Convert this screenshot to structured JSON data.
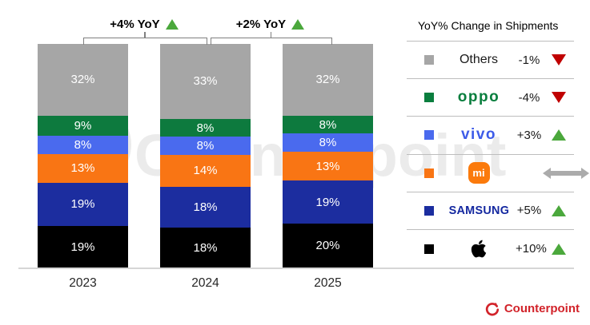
{
  "chart_data": {
    "type": "bar",
    "subtype": "100% stacked column",
    "categories": [
      "2023",
      "2024",
      "2025"
    ],
    "stack_order": "top-to-bottom",
    "series": [
      {
        "name": "Others",
        "color": "#A6A6A6",
        "values": [
          32,
          33,
          32
        ]
      },
      {
        "name": "OPPO",
        "color": "#0D7A3E",
        "values": [
          9,
          8,
          8
        ]
      },
      {
        "name": "vivo",
        "color": "#4A6AEE",
        "values": [
          8,
          8,
          8
        ]
      },
      {
        "name": "Xiaomi",
        "color": "#F97514",
        "values": [
          13,
          14,
          13
        ]
      },
      {
        "name": "Samsung",
        "color": "#1C2D9F",
        "values": [
          19,
          18,
          19
        ]
      },
      {
        "name": "Apple",
        "color": "#000000",
        "values": [
          19,
          18,
          20
        ]
      }
    ],
    "value_suffix": "%",
    "annotations": [
      {
        "label": "+4% YoY",
        "between": [
          "2023",
          "2024"
        ],
        "direction": "up"
      },
      {
        "label": "+2% YoY",
        "between": [
          "2024",
          "2025"
        ],
        "direction": "up"
      }
    ],
    "grid": false,
    "legend_position": "right"
  },
  "legend": {
    "title": "YoY% Change in Shipments",
    "rows": [
      {
        "brand": "Others",
        "logo": "others",
        "swatch": "#A6A6A6",
        "change": "-1%",
        "trend": "down"
      },
      {
        "brand": "oppo",
        "logo": "oppo",
        "swatch": "#0A7E3E",
        "change": "-4%",
        "trend": "down"
      },
      {
        "brand": "vivo",
        "logo": "vivo",
        "swatch": "#4A6AEE",
        "change": "+3%",
        "trend": "up"
      },
      {
        "brand": "mi",
        "logo": "xiaomi",
        "swatch": "#F97514",
        "change": "",
        "trend": "flat"
      },
      {
        "brand": "SAMSUNG",
        "logo": "samsung",
        "swatch": "#1B2D9F",
        "change": "+5%",
        "trend": "up"
      },
      {
        "brand": "Apple",
        "logo": "apple",
        "swatch": "#000000",
        "change": "+10%",
        "trend": "up"
      }
    ]
  },
  "footer": {
    "brand": "Counterpoint"
  },
  "watermark": {
    "text": "Counterpoint"
  },
  "colors": {
    "trend_up": "#4BA83C",
    "trend_down": "#C00000",
    "trend_flat": "#ABABAB",
    "axis_line": "#D6D6D6",
    "bracket_line": "#7F7F7F",
    "counterpoint_red": "#D2232A"
  }
}
